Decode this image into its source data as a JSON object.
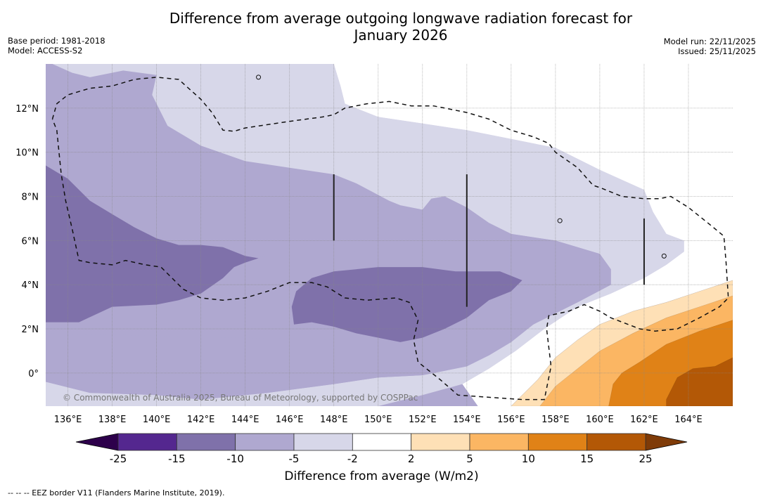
{
  "title_line1": "Difference from average outgoing longwave radiation forecast for",
  "title_line2": "January 2026",
  "meta_left": [
    "Base period: 1981-2018",
    "Model: ACCESS-S2"
  ],
  "meta_right": [
    "Model run: 22/11/2025",
    "Issued: 25/11/2025"
  ],
  "copyright": "© Commonwealth of Australia 2025, Bureau of Meteorology, supported by COSPPac",
  "footer": "--  --  -- EEZ border V11 (Flanders Marine Institute, 2019).",
  "chart_data": {
    "type": "heatmap",
    "title": "Difference from average outgoing longwave radiation forecast for January 2026",
    "xlabel": "",
    "ylabel": "",
    "lon_range": [
      135,
      166
    ],
    "lat_range": [
      -1.5,
      14
    ],
    "lon_ticks": [
      136,
      138,
      140,
      142,
      144,
      146,
      148,
      150,
      152,
      154,
      156,
      158,
      160,
      162,
      164
    ],
    "lon_tick_labels": [
      "136°E",
      "138°E",
      "140°E",
      "142°E",
      "144°E",
      "146°E",
      "148°E",
      "150°E",
      "152°E",
      "154°E",
      "156°E",
      "158°E",
      "160°E",
      "162°E",
      "164°E"
    ],
    "lat_ticks": [
      0,
      2,
      4,
      6,
      8,
      10,
      12
    ],
    "lat_tick_labels": [
      "0°",
      "2°N",
      "4°N",
      "6°N",
      "8°N",
      "10°N",
      "12°N"
    ],
    "grid": true,
    "colorbar": {
      "label": "Difference from average (W/m2)",
      "boundaries": [
        -25,
        -15,
        -10,
        -5,
        -2,
        2,
        5,
        10,
        15,
        25
      ],
      "tick_labels": [
        "-25",
        "-15",
        "-10",
        "-5",
        "-2",
        "2",
        "5",
        "10",
        "15",
        "25"
      ],
      "colors": [
        "#54278f",
        "#7f71aa",
        "#afa8d0",
        "#d7d7e9",
        "#ffffff",
        "#fee0b6",
        "#fbb663",
        "#e08217",
        "#b35806"
      ],
      "under_color": "#2d004b",
      "over_color": "#7f3b08",
      "extend": "both",
      "placement": "bottom"
    },
    "default_level_color": "#afa8d0",
    "regions": [
      {
        "level": "-5 to -2",
        "color": "#d7d7e9",
        "polygon": [
          [
            135.3,
            14
          ],
          [
            148,
            14
          ],
          [
            148.3,
            13
          ],
          [
            148.5,
            12.2
          ],
          [
            150,
            11.6
          ],
          [
            152,
            11.3
          ],
          [
            154,
            11
          ],
          [
            156,
            10.6
          ],
          [
            158,
            10.2
          ],
          [
            160,
            9.2
          ],
          [
            162,
            8.3
          ],
          [
            162.4,
            7.3
          ],
          [
            163,
            6.3
          ],
          [
            163.8,
            6
          ],
          [
            163.8,
            5.5
          ],
          [
            163,
            4.9
          ],
          [
            162,
            4.3
          ],
          [
            160.5,
            3.6
          ],
          [
            159,
            3.0
          ],
          [
            157.5,
            2.0
          ],
          [
            156.2,
            1.0
          ],
          [
            155,
            0.2
          ],
          [
            153.8,
            -0.5
          ],
          [
            152,
            -1
          ],
          [
            150,
            -1.5
          ],
          [
            135,
            -1.5
          ],
          [
            135,
            -0.4
          ],
          [
            137,
            -0.9
          ],
          [
            140,
            -1.0
          ],
          [
            142,
            -1.2
          ],
          [
            145,
            -0.9
          ],
          [
            148,
            -0.5
          ],
          [
            150,
            -0.2
          ],
          [
            152,
            -0.1
          ],
          [
            154,
            0.3
          ],
          [
            155,
            0.8
          ],
          [
            156,
            1.4
          ],
          [
            157,
            2.2
          ],
          [
            159,
            3.2
          ],
          [
            160.5,
            4.0
          ],
          [
            160.5,
            4.7
          ],
          [
            160,
            5.4
          ],
          [
            158,
            6.0
          ],
          [
            156,
            6.3
          ],
          [
            155,
            6.8
          ],
          [
            154,
            7.5
          ],
          [
            153,
            8
          ],
          [
            152.4,
            7.9
          ],
          [
            152,
            7.4
          ],
          [
            151,
            7.6
          ],
          [
            150.5,
            7.8
          ],
          [
            149,
            8.6
          ],
          [
            148,
            9.0
          ],
          [
            146,
            9.3
          ],
          [
            144,
            9.6
          ],
          [
            142,
            10.3
          ],
          [
            140.5,
            11.2
          ],
          [
            139.8,
            12.6
          ],
          [
            140,
            13.5
          ],
          [
            138.5,
            13.7
          ],
          [
            137,
            13.4
          ],
          [
            136.2,
            13.6
          ],
          [
            135.3,
            14
          ]
        ]
      },
      {
        "level": "-10 to -5 light",
        "color": "#afa8d0",
        "polygon": [
          [
            152,
            7.4
          ],
          [
            152.4,
            7.9
          ],
          [
            153,
            8
          ],
          [
            154,
            7.5
          ],
          [
            155,
            6.8
          ],
          [
            156,
            6.3
          ],
          [
            158,
            6.0
          ],
          [
            160,
            5.4
          ],
          [
            160.5,
            4.7
          ],
          [
            160.5,
            4.0
          ],
          [
            159,
            3.2
          ],
          [
            157,
            2.2
          ],
          [
            156,
            1.4
          ],
          [
            155,
            0.8
          ],
          [
            154,
            0.3
          ],
          [
            152,
            -0.1
          ],
          [
            150,
            -0.2
          ],
          [
            148,
            -0.5
          ],
          [
            145,
            -0.9
          ],
          [
            142,
            -1.2
          ],
          [
            140,
            -1.0
          ],
          [
            137,
            -0.9
          ],
          [
            135,
            -0.4
          ],
          [
            135,
            9.4
          ],
          [
            136,
            8.8
          ],
          [
            137,
            7.8
          ],
          [
            138,
            7.2
          ],
          [
            139,
            6.6
          ],
          [
            141,
            6.0
          ],
          [
            142,
            5.8
          ],
          [
            143,
            5.8
          ],
          [
            145,
            5.3
          ],
          [
            144,
            5.2
          ],
          [
            143,
            5.0
          ],
          [
            141.5,
            4.2
          ],
          [
            140,
            3.3
          ],
          [
            138,
            3.0
          ],
          [
            136.5,
            2.3
          ],
          [
            135,
            2.3
          ],
          [
            135,
            1.8
          ],
          [
            148,
            1.5
          ],
          [
            148,
            3.8
          ],
          [
            150,
            4.2
          ],
          [
            152,
            4.3
          ],
          [
            153.5,
            4.1
          ],
          [
            155,
            3.9
          ],
          [
            156.5,
            3.9
          ],
          [
            155.5,
            3.5
          ],
          [
            154,
            2.5
          ],
          [
            152.5,
            2
          ],
          [
            151,
            1.7
          ],
          [
            150,
            1.5
          ],
          [
            149,
            1.8
          ],
          [
            148,
            2.0
          ],
          [
            147.5,
            2.6
          ],
          [
            147.3,
            4.5
          ]
        ]
      }
    ],
    "dark_regions": [
      {
        "level": "-15 to -10",
        "color": "#7f71aa",
        "polygon": [
          [
            135,
            9.4
          ],
          [
            136,
            8.8
          ],
          [
            137,
            7.8
          ],
          [
            138,
            7.2
          ],
          [
            139,
            6.6
          ],
          [
            140,
            6.1
          ],
          [
            141,
            5.8
          ],
          [
            142,
            5.8
          ],
          [
            143,
            5.7
          ],
          [
            144,
            5.3
          ],
          [
            144.6,
            5.2
          ],
          [
            144,
            5.0
          ],
          [
            143.5,
            4.8
          ],
          [
            143,
            4.3
          ],
          [
            142,
            3.6
          ],
          [
            141,
            3.3
          ],
          [
            140,
            3.1
          ],
          [
            138,
            3.0
          ],
          [
            136.5,
            2.3
          ],
          [
            135,
            2.3
          ]
        ]
      },
      {
        "level": "-15 to -10 east",
        "color": "#7f71aa",
        "polygon": [
          [
            146.3,
            3.7
          ],
          [
            147,
            4.3
          ],
          [
            148,
            4.6
          ],
          [
            149,
            4.7
          ],
          [
            150,
            4.8
          ],
          [
            152,
            4.8
          ],
          [
            153.5,
            4.6
          ],
          [
            154.5,
            4.6
          ],
          [
            155.5,
            4.6
          ],
          [
            156.5,
            4.2
          ],
          [
            156,
            3.7
          ],
          [
            155,
            3.3
          ],
          [
            154,
            2.5
          ],
          [
            153,
            2.0
          ],
          [
            152,
            1.6
          ],
          [
            151,
            1.4
          ],
          [
            150.5,
            1.5
          ],
          [
            149,
            1.8
          ],
          [
            148,
            2.1
          ],
          [
            147,
            2.3
          ],
          [
            146.2,
            2.2
          ],
          [
            146.1,
            3.0
          ]
        ]
      }
    ],
    "warm_regions": [
      {
        "level": "2 to 5",
        "color": "#fee0b6",
        "polygon": [
          [
            166,
            4.2
          ],
          [
            164.5,
            3.7
          ],
          [
            163,
            3.2
          ],
          [
            161.5,
            2.8
          ],
          [
            160,
            2.2
          ],
          [
            159,
            1.5
          ],
          [
            158,
            0.7
          ],
          [
            157.2,
            -0.3
          ],
          [
            156.5,
            -1.0
          ],
          [
            156,
            -1.5
          ],
          [
            166,
            -1.5
          ]
        ]
      },
      {
        "level": "5 to 10",
        "color": "#fbb663",
        "polygon": [
          [
            166,
            3.5
          ],
          [
            164.5,
            3.0
          ],
          [
            163,
            2.5
          ],
          [
            161.5,
            1.8
          ],
          [
            160,
            1.0
          ],
          [
            159,
            0.2
          ],
          [
            158,
            -0.6
          ],
          [
            157.3,
            -1.5
          ],
          [
            166,
            -1.5
          ]
        ]
      },
      {
        "level": "10 to 15",
        "color": "#e08217",
        "polygon": [
          [
            166,
            2.4
          ],
          [
            164.5,
            1.9
          ],
          [
            163,
            1.3
          ],
          [
            161.8,
            0.5
          ],
          [
            161,
            0
          ],
          [
            160.6,
            -0.5
          ],
          [
            160.4,
            -1.5
          ],
          [
            166,
            -1.5
          ]
        ]
      },
      {
        "level": "15 to 25",
        "color": "#b35806",
        "polygon": [
          [
            166,
            0.7
          ],
          [
            165.2,
            0.3
          ],
          [
            164.2,
            0.2
          ],
          [
            163.5,
            -0.2
          ],
          [
            163,
            -1.2
          ],
          [
            163,
            -1.5
          ],
          [
            166,
            -1.5
          ]
        ]
      }
    ],
    "eez_border": [
      [
        135.3,
        11.5
      ],
      [
        135.5,
        12.2
      ],
      [
        136,
        12.6
      ],
      [
        137,
        12.9
      ],
      [
        138,
        13.0
      ],
      [
        139,
        13.3
      ],
      [
        140,
        13.4
      ],
      [
        141,
        13.3
      ],
      [
        142,
        12.4
      ],
      [
        142.5,
        11.8
      ],
      [
        143,
        11.0
      ],
      [
        143.5,
        10.95
      ],
      [
        144,
        11.1
      ],
      [
        146,
        11.4
      ],
      [
        147.5,
        11.6
      ],
      [
        148,
        11.7
      ],
      [
        148.5,
        12.0
      ],
      [
        149.5,
        12.2
      ],
      [
        150.5,
        12.3
      ],
      [
        151.5,
        12.1
      ],
      [
        152.5,
        12.1
      ],
      [
        153,
        12.0
      ],
      [
        154,
        11.8
      ],
      [
        155,
        11.5
      ],
      [
        156,
        11.0
      ],
      [
        157,
        10.7
      ],
      [
        157.7,
        10.4
      ],
      [
        158,
        10.0
      ],
      [
        159,
        9.3
      ],
      [
        159.7,
        8.5
      ],
      [
        160,
        8.4
      ],
      [
        161,
        8.0
      ],
      [
        162,
        7.9
      ],
      [
        162.7,
        7.9
      ],
      [
        163.2,
        8.0
      ],
      [
        164,
        7.5
      ],
      [
        165,
        6.7
      ],
      [
        165.6,
        6.2
      ],
      [
        165.7,
        5.0
      ],
      [
        165.8,
        3.4
      ],
      [
        165.4,
        3.0
      ],
      [
        164.5,
        2.5
      ],
      [
        163.5,
        2.0
      ],
      [
        162.5,
        1.9
      ],
      [
        161.8,
        2.0
      ],
      [
        160.5,
        2.5
      ],
      [
        160,
        2.8
      ],
      [
        159.3,
        3.1
      ],
      [
        158.6,
        2.8
      ],
      [
        157.7,
        2.6
      ],
      [
        157.6,
        2.0
      ],
      [
        157.8,
        0.3
      ],
      [
        157.5,
        -1.2
      ],
      [
        156.5,
        -1.2
      ],
      [
        155,
        -1.1
      ],
      [
        153.6,
        -1.0
      ],
      [
        152.8,
        -0.3
      ],
      [
        151.8,
        0.5
      ],
      [
        151.6,
        1.5
      ],
      [
        151.8,
        2.4
      ],
      [
        151.4,
        3.2
      ],
      [
        150.8,
        3.4
      ],
      [
        149.5,
        3.3
      ],
      [
        148.5,
        3.4
      ],
      [
        147.7,
        3.9
      ],
      [
        147,
        4.1
      ],
      [
        146,
        4.1
      ],
      [
        145,
        3.7
      ],
      [
        144,
        3.4
      ],
      [
        143,
        3.3
      ],
      [
        142,
        3.4
      ],
      [
        141.2,
        3.8
      ],
      [
        140.6,
        4.4
      ],
      [
        140.2,
        4.8
      ],
      [
        139.5,
        4.9
      ],
      [
        138.6,
        5.1
      ],
      [
        138,
        4.9
      ],
      [
        137,
        5.0
      ],
      [
        136.5,
        5.1
      ],
      [
        136.2,
        6.5
      ],
      [
        135.9,
        7.8
      ],
      [
        135.7,
        9.0
      ],
      [
        135.6,
        10.0
      ],
      [
        135.5,
        11.0
      ],
      [
        135.3,
        11.5
      ]
    ],
    "vertical_markers": [
      {
        "lon": 148,
        "lat_from": 6,
        "lat_to": 9
      },
      {
        "lon": 154,
        "lat_from": 3,
        "lat_to": 9
      },
      {
        "lon": 162,
        "lat_from": 4,
        "lat_to": 7
      }
    ]
  }
}
